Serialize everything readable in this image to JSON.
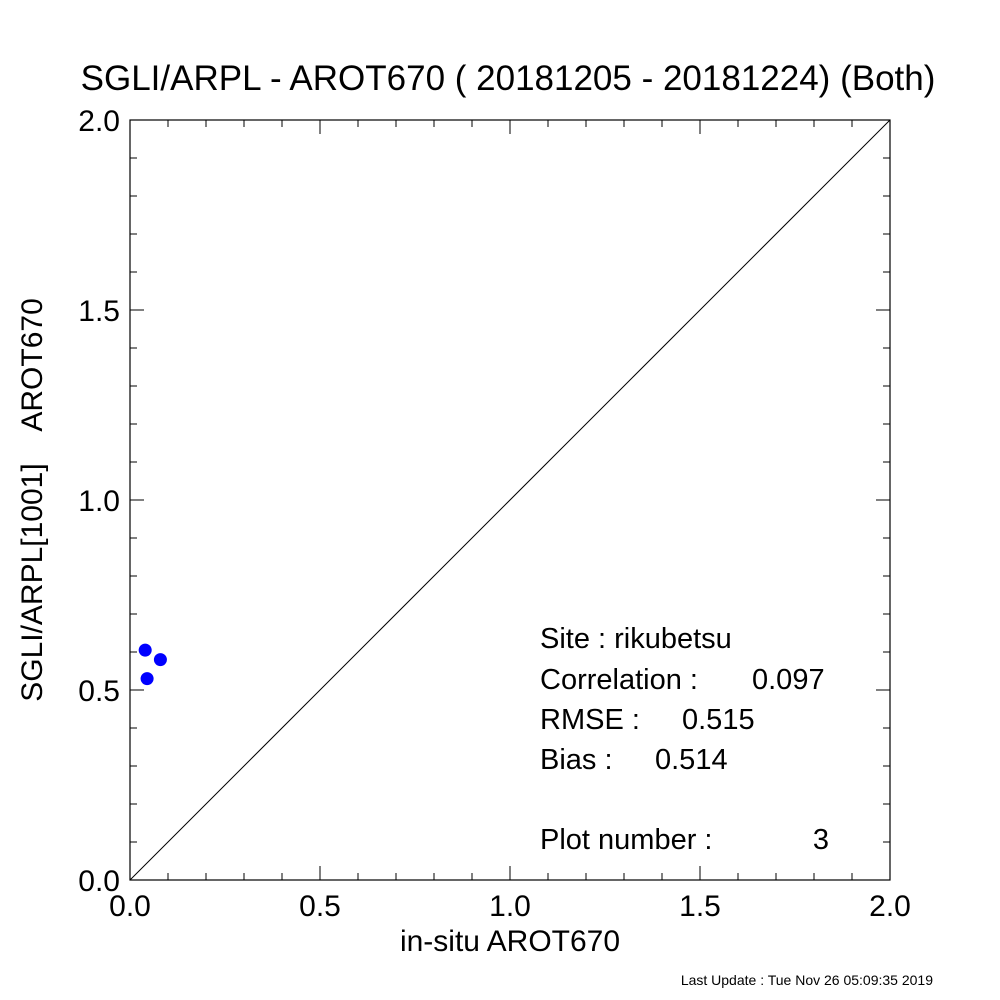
{
  "chart_data": {
    "type": "scatter",
    "title": "SGLI/ARPL - AROT670 ( 20181205 - 20181224) (Both)",
    "xlabel": "in-situ AROT670",
    "ylabel": "SGLI/ARPL[1001]    AROT670",
    "xlim": [
      0.0,
      2.0
    ],
    "ylim": [
      0.0,
      2.0
    ],
    "x_ticks": [
      "0.0",
      "0.5",
      "1.0",
      "1.5",
      "2.0"
    ],
    "y_ticks": [
      "0.0",
      "0.5",
      "1.0",
      "1.5",
      "2.0"
    ],
    "tick_values": [
      0.0,
      0.5,
      1.0,
      1.5,
      2.0
    ],
    "minor_tick_step": 0.1,
    "grid": false,
    "reference_line": "1:1",
    "point_color": "#0000ff",
    "series": [
      {
        "points": [
          {
            "x": 0.04,
            "y": 0.605
          },
          {
            "x": 0.08,
            "y": 0.58
          },
          {
            "x": 0.045,
            "y": 0.53
          }
        ]
      }
    ],
    "stats": {
      "site_label": "Site : rikubetsu",
      "correlation_label": "Correlation :",
      "correlation_value": "0.097",
      "rmse_label": "RMSE :",
      "rmse_value": "0.515",
      "bias_label": "Bias :",
      "bias_value": "0.514",
      "plot_number_label": "Plot number :",
      "plot_number_value": "3"
    }
  },
  "footer": {
    "last_update": "Last Update : Tue Nov 26 05:09:35 2019"
  }
}
